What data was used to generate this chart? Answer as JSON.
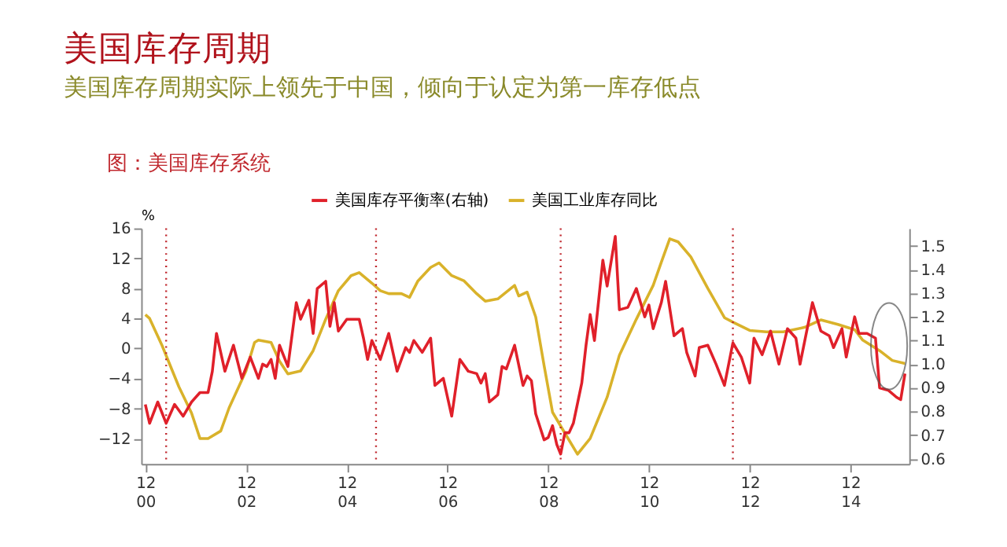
{
  "chart_data": {
    "type": "line",
    "title": "美国库存周期",
    "subtitle": "美国库存周期实际上领先于中国，倾向于认定为第一库存低点",
    "ylabel": "%",
    "annotations": [
      "图：美国库存系统"
    ],
    "xlim": [
      "2000-11",
      "2016-02"
    ],
    "xticks": [
      {
        "value": "2000-12",
        "label": "12\n00"
      },
      {
        "value": "2002-12",
        "label": "12\n02"
      },
      {
        "value": "2004-12",
        "label": "12\n04"
      },
      {
        "value": "2006-12",
        "label": "12\n06"
      },
      {
        "value": "2008-12",
        "label": "12\n08"
      },
      {
        "value": "2010-12",
        "label": "12\n10"
      },
      {
        "value": "2012-12",
        "label": "12\n12"
      },
      {
        "value": "2014-12",
        "label": "12\n14"
      }
    ],
    "ylim": [
      -15.4,
      16
    ],
    "yticks": [
      -12,
      -8,
      -4,
      0,
      4,
      8,
      12,
      16
    ],
    "y2lim": [
      0.578,
      1.574
    ],
    "y2ticks": [
      0.6,
      0.7,
      0.8,
      0.9,
      {
        "value": 1.0,
        "label": "1.0"
      },
      1.1,
      1.2,
      1.3,
      1.4,
      1.5
    ],
    "legend": "top",
    "grid": false,
    "marker": "none",
    "line_style": "solid",
    "ref_lines": [
      {
        "axis": "x",
        "value": "2001-05",
        "color": "#c0282e",
        "line_style": "dotted"
      },
      {
        "axis": "x",
        "value": "2005-07",
        "color": "#c0282e",
        "line_style": "dotted"
      },
      {
        "axis": "x",
        "value": "2009-03",
        "color": "#c0282e",
        "line_style": "dotted"
      },
      {
        "axis": "x",
        "value": "2012-08",
        "color": "#c0282e",
        "line_style": "dotted"
      }
    ],
    "series": [
      {
        "name": "美国库存平衡率(右轴)",
        "color": "#e0202a",
        "axis": "y2",
        "x": [
          "2000-12",
          "2001-01",
          "2001-03",
          "2001-05",
          "2001-07",
          "2001-09",
          "2001-11",
          "2002-01",
          "2002-03",
          "2002-04",
          "2002-05",
          "2002-07",
          "2002-09",
          "2002-11",
          "2003-01",
          "2003-03",
          "2003-04",
          "2003-05",
          "2003-06",
          "2003-07",
          "2003-08",
          "2003-10",
          "2003-12",
          "2004-01",
          "2004-03",
          "2004-04",
          "2004-05",
          "2004-07",
          "2004-08",
          "2004-09",
          "2004-10",
          "2004-12",
          "2005-03",
          "2005-04",
          "2005-05",
          "2005-06",
          "2005-08",
          "2005-10",
          "2005-12",
          "2006-02",
          "2006-03",
          "2006-04",
          "2006-06",
          "2006-08",
          "2006-09",
          "2006-11",
          "2007-01",
          "2007-03",
          "2007-05",
          "2007-07",
          "2007-08",
          "2007-09",
          "2007-10",
          "2007-12",
          "2008-01",
          "2008-02",
          "2008-04",
          "2008-06",
          "2008-07",
          "2008-08",
          "2008-09",
          "2008-11",
          "2008-12",
          "2009-01",
          "2009-02",
          "2009-03",
          "2009-04",
          "2009-05",
          "2009-06",
          "2009-08",
          "2009-09",
          "2009-10",
          "2009-11",
          "2010-01",
          "2010-02",
          "2010-04",
          "2010-05",
          "2010-07",
          "2010-09",
          "2010-11",
          "2010-12",
          "2011-01",
          "2011-03",
          "2011-04",
          "2011-06",
          "2011-08",
          "2011-09",
          "2011-11",
          "2011-12",
          "2012-02",
          "2012-04",
          "2012-06",
          "2012-08",
          "2012-10",
          "2012-12",
          "2013-01",
          "2013-03",
          "2013-05",
          "2013-07",
          "2013-09",
          "2013-11",
          "2013-12",
          "2014-03",
          "2014-05",
          "2014-07",
          "2014-08",
          "2014-10",
          "2014-11",
          "2015-01",
          "2015-02",
          "2015-04",
          "2015-06",
          "2015-07",
          "2015-09",
          "2015-11",
          "2015-12",
          "2016-01"
        ],
        "values": [
          0.83,
          0.75,
          0.84,
          0.75,
          0.83,
          0.78,
          0.84,
          0.88,
          0.88,
          0.97,
          1.13,
          0.97,
          1.08,
          0.94,
          1.03,
          0.94,
          1.0,
          0.99,
          1.02,
          0.94,
          1.08,
          0.99,
          1.26,
          1.19,
          1.27,
          1.13,
          1.32,
          1.35,
          1.16,
          1.26,
          1.14,
          1.19,
          1.19,
          1.11,
          1.02,
          1.1,
          1.02,
          1.13,
          0.97,
          1.07,
          1.05,
          1.1,
          1.05,
          1.11,
          0.91,
          0.94,
          0.78,
          1.02,
          0.97,
          0.96,
          0.92,
          0.96,
          0.84,
          0.87,
          0.99,
          0.98,
          1.08,
          0.91,
          0.95,
          0.93,
          0.79,
          0.68,
          0.69,
          0.74,
          0.66,
          0.62,
          0.71,
          0.71,
          0.75,
          0.92,
          1.08,
          1.21,
          1.1,
          1.44,
          1.33,
          1.54,
          1.23,
          1.24,
          1.32,
          1.2,
          1.25,
          1.15,
          1.26,
          1.35,
          1.12,
          1.15,
          1.05,
          0.95,
          1.07,
          1.08,
          1.0,
          0.91,
          1.09,
          1.03,
          0.92,
          1.11,
          1.04,
          1.14,
          1.0,
          1.15,
          1.11,
          1.0,
          1.26,
          1.14,
          1.12,
          1.07,
          1.15,
          1.03,
          1.2,
          1.13,
          1.13,
          1.11,
          0.9,
          0.89,
          0.86,
          0.85,
          0.96
        ]
      },
      {
        "name": "美国工业库存同比",
        "color": "#d9b22a",
        "x": [
          "2000-12",
          "2001-01",
          "2001-04",
          "2001-08",
          "2001-11",
          "2002-01",
          "2002-03",
          "2002-06",
          "2002-08",
          "2002-12",
          "2003-02",
          "2003-03",
          "2003-06",
          "2003-08",
          "2003-10",
          "2004-01",
          "2004-04",
          "2004-07",
          "2004-10",
          "2005-01",
          "2005-03",
          "2005-06",
          "2005-08",
          "2005-10",
          "2006-01",
          "2006-03",
          "2006-05",
          "2006-08",
          "2006-10",
          "2007-01",
          "2007-04",
          "2007-07",
          "2007-09",
          "2007-12",
          "2008-04",
          "2008-05",
          "2008-07",
          "2008-09",
          "2008-11",
          "2009-01",
          "2009-04",
          "2009-07",
          "2009-10",
          "2010-02",
          "2010-05",
          "2010-09",
          "2011-01",
          "2011-03",
          "2011-05",
          "2011-07",
          "2011-10",
          "2012-02",
          "2012-06",
          "2012-08",
          "2012-12",
          "2013-04",
          "2013-08",
          "2014-01",
          "2014-05",
          "2014-09",
          "2015-01",
          "2015-03",
          "2015-07",
          "2015-10",
          "2016-01"
        ],
        "values": [
          4.5,
          4,
          0.4,
          -5.1,
          -8.6,
          -12,
          -12,
          -11,
          -7.9,
          -3,
          0.8,
          1.1,
          0.8,
          -1.7,
          -3.4,
          -3,
          -0.3,
          3.9,
          7.7,
          9.7,
          10.1,
          8.7,
          7.7,
          7.3,
          7.3,
          6.8,
          9,
          10.8,
          11.4,
          9.7,
          9,
          7.3,
          6.3,
          6.6,
          8.4,
          7.0,
          7.5,
          4.2,
          -2.3,
          -8.5,
          -11.3,
          -14.1,
          -12,
          -6.5,
          -0.9,
          3.9,
          8.4,
          11.5,
          14.6,
          14.2,
          12.2,
          8.0,
          4.1,
          3.5,
          2.4,
          2.2,
          2.2,
          2.8,
          3.8,
          3.2,
          2.5,
          1.1,
          -0.3,
          -1.6,
          -2
        ]
      }
    ]
  }
}
